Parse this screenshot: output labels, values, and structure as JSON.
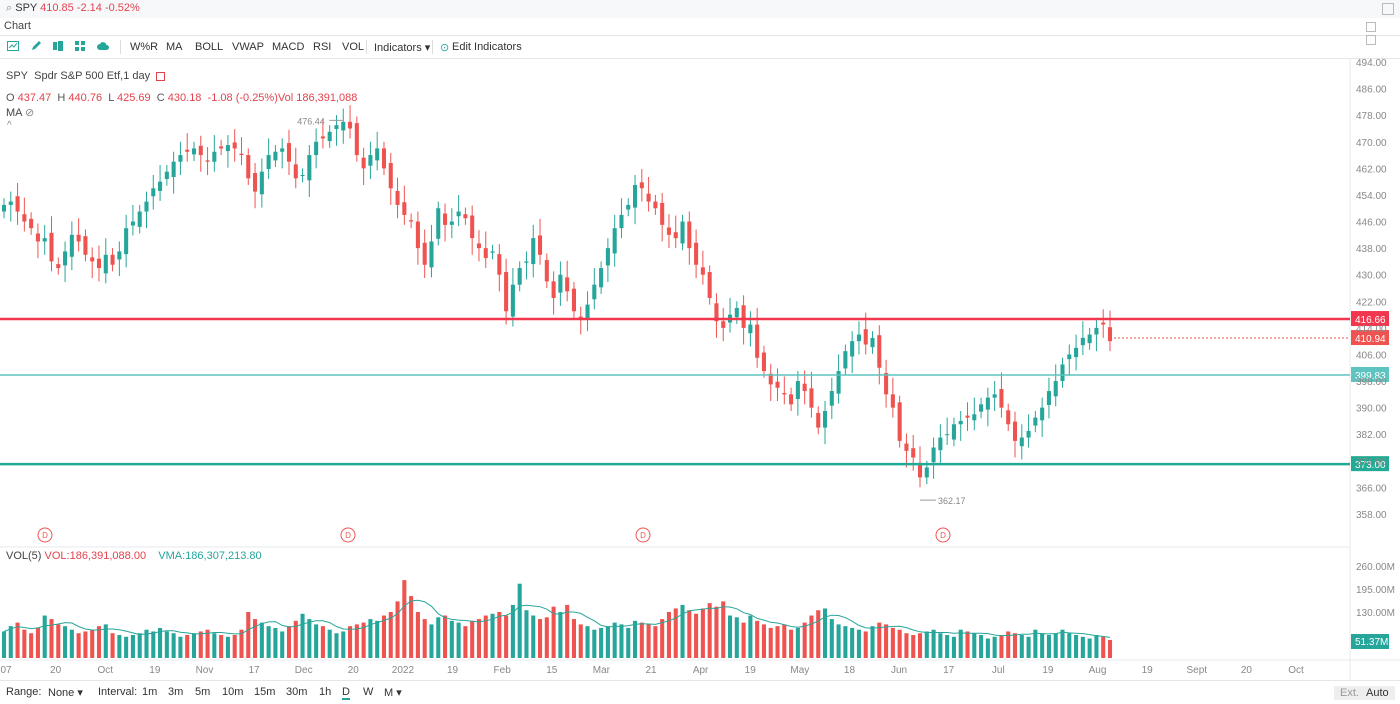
{
  "topbar": {
    "symbol": "SPY",
    "quote": "410.85 -2.14 -0.52%"
  },
  "tabs": {
    "chart_label": "Chart"
  },
  "toolbar": {
    "buttons": [
      "W%R",
      "MA",
      "BOLL",
      "VWAP",
      "MACD",
      "RSI",
      "VOL",
      "Indicators ▾",
      "Edit Indicators"
    ]
  },
  "legend": {
    "symbol": "SPY",
    "name": "Spdr S&P 500 Etf,1 day",
    "o_label": "O",
    "open": "437.47",
    "h_label": "H",
    "high": "440.76",
    "l_label": "L",
    "low": "425.69",
    "c_label": "C",
    "close": "430.18",
    "change": "-1.08 (-0.25%)",
    "vol": "Vol 186,391,088",
    "ma_label": "MA"
  },
  "volume_legend": {
    "label": "VOL(5)",
    "vol": "VOL:186,391,088.00",
    "vma": "VMA:186,307,213.80"
  },
  "bottombar": {
    "range_label": "Range:",
    "range_value": "None ▾",
    "interval_label": "Interval:",
    "intervals": [
      "1m",
      "3m",
      "5m",
      "10m",
      "15m",
      "30m",
      "1h",
      "D",
      "W",
      "M ▾"
    ],
    "ext": "Ext.",
    "auto": "Auto"
  },
  "colors": {
    "up": "#26a69a",
    "down": "#ef5350",
    "resistance": "#f2364d",
    "support1": "#5fc4c0",
    "support2": "#22ab94"
  },
  "chart_data": {
    "type": "candlestick",
    "price_axis": {
      "min": 358,
      "max": 494,
      "ticks": [
        "494.00",
        "486.00",
        "478.00",
        "470.00",
        "462.00",
        "454.00",
        "446.00",
        "438.00",
        "430.00",
        "422.00",
        "414.00",
        "406.00",
        "398.00",
        "390.00",
        "382.00",
        "374.00",
        "366.00",
        "358.00"
      ]
    },
    "volume_axis": {
      "ticks": [
        "260.00M",
        "195.00M",
        "130.00M"
      ],
      "max": 260
    },
    "x_labels": [
      "07",
      "20",
      "Oct",
      "19",
      "Nov",
      "17",
      "Dec",
      "20",
      "2022",
      "19",
      "Feb",
      "15",
      "Mar",
      "21",
      "Apr",
      "19",
      "May",
      "18",
      "Jun",
      "17",
      "Jul",
      "19",
      "Aug",
      "19",
      "Sept",
      "20",
      "Oct"
    ],
    "date_range": [
      "2021-09-07",
      "2022-08-12"
    ],
    "horizontal_lines": [
      {
        "price": 416.66,
        "label": "416.66",
        "kind": "resistance"
      },
      {
        "price": 399.83,
        "label": "399.83",
        "kind": "support1"
      },
      {
        "price": 373.0,
        "label": "373.00",
        "kind": "support2"
      }
    ],
    "last_price": {
      "value": 410.94,
      "label": "410.94"
    },
    "last_volume_label": "51.37M",
    "annotations": [
      {
        "text": "476.44",
        "price": 476.44
      },
      {
        "text": "362.17",
        "price": 362.17
      }
    ],
    "dividend_marker": "D",
    "close_series": [
      451,
      452,
      449,
      446,
      444,
      440,
      441,
      434,
      432,
      437,
      442,
      440,
      436,
      434,
      432,
      436,
      433,
      437,
      444,
      446,
      449,
      452,
      456,
      458,
      461,
      464,
      466,
      467,
      468,
      466,
      464,
      467,
      468,
      469,
      468,
      466,
      459,
      455,
      461,
      466,
      467,
      468,
      464,
      459,
      460,
      466,
      470,
      471,
      473,
      475,
      476,
      474,
      466,
      462,
      466,
      468,
      462,
      456,
      451,
      448,
      446,
      438,
      433,
      440,
      450,
      445,
      446,
      449,
      447,
      441,
      438,
      435,
      437,
      430,
      419,
      427,
      432,
      434,
      441,
      436,
      428,
      423,
      430,
      425,
      419,
      417,
      421,
      427,
      432,
      438,
      444,
      448,
      451,
      457,
      456,
      452,
      450,
      445,
      442,
      441,
      446,
      438,
      433,
      430,
      423,
      416,
      414,
      418,
      420,
      414,
      415,
      405,
      401,
      397,
      396,
      394,
      391,
      398,
      395,
      390,
      384,
      389,
      395,
      401,
      407,
      410,
      412,
      409,
      411,
      402,
      394,
      390,
      380,
      377,
      375,
      369,
      372,
      378,
      381,
      382,
      385,
      386,
      387,
      388,
      391,
      393,
      394,
      390,
      385,
      380,
      381,
      383,
      387,
      390,
      395,
      398,
      403,
      406,
      408,
      411,
      412,
      414,
      415,
      410
    ],
    "volume_series": [
      75,
      90,
      100,
      80,
      70,
      85,
      120,
      110,
      95,
      90,
      80,
      70,
      75,
      80,
      90,
      95,
      70,
      65,
      60,
      65,
      70,
      80,
      75,
      85,
      75,
      70,
      60,
      65,
      70,
      75,
      80,
      70,
      65,
      60,
      65,
      80,
      130,
      110,
      100,
      90,
      85,
      75,
      90,
      105,
      125,
      110,
      95,
      90,
      80,
      70,
      75,
      90,
      95,
      100,
      110,
      105,
      120,
      130,
      160,
      220,
      175,
      130,
      110,
      95,
      115,
      120,
      105,
      100,
      90,
      105,
      110,
      120,
      125,
      130,
      120,
      150,
      210,
      135,
      120,
      110,
      115,
      145,
      130,
      150,
      110,
      95,
      90,
      80,
      85,
      90,
      100,
      95,
      85,
      105,
      100,
      95,
      90,
      110,
      130,
      140,
      150,
      135,
      125,
      140,
      155,
      145,
      160,
      120,
      115,
      100,
      120,
      105,
      95,
      85,
      90,
      95,
      80,
      85,
      100,
      120,
      135,
      140,
      110,
      95,
      90,
      85,
      80,
      75,
      90,
      100,
      95,
      85,
      80,
      70,
      65,
      70,
      75,
      80,
      70,
      65,
      60,
      80,
      75,
      70,
      65,
      55,
      60,
      65,
      75,
      70,
      65,
      60,
      80,
      70,
      65,
      70,
      80,
      70,
      65,
      60,
      55,
      65,
      60,
      51
    ]
  }
}
